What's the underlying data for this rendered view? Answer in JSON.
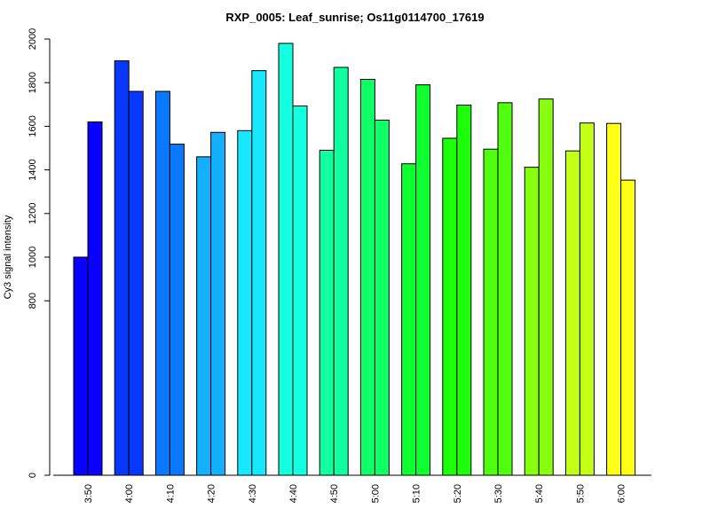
{
  "chart_data": {
    "type": "bar",
    "title": "RXP_0005: Leaf_sunrise; Os11g0114700_17619",
    "xlabel": "",
    "ylabel": "Cy3 signal intensity",
    "ylim": [
      0,
      2000
    ],
    "y_ticks": [
      0,
      800,
      1000,
      1200,
      1400,
      1600,
      1800,
      2000
    ],
    "categories": [
      "3:50",
      "4:00",
      "4:10",
      "4:20",
      "4:30",
      "4:40",
      "4:50",
      "5:00",
      "5:10",
      "5:20",
      "5:30",
      "5:40",
      "5:50",
      "6:00"
    ],
    "series": [
      {
        "values": [
          1000,
          1900,
          1760,
          1460,
          1580,
          1980,
          1490,
          1815,
          1428,
          1545,
          1495,
          1412,
          1487,
          1613
        ]
      },
      {
        "values": [
          1620,
          1760,
          1518,
          1572,
          1855,
          1693,
          1870,
          1628,
          1790,
          1697,
          1708,
          1725,
          1615,
          1353
        ]
      }
    ],
    "colors": [
      "#0a00ff",
      "#0838ff",
      "#0a78ff",
      "#14b0ff",
      "#18e8ff",
      "#14ffe0",
      "#10ffa0",
      "#10ff68",
      "#10ff30",
      "#1cff08",
      "#50ff10",
      "#88ff10",
      "#c4ff18",
      "#ffff18"
    ],
    "grid": false,
    "legend": "none"
  }
}
